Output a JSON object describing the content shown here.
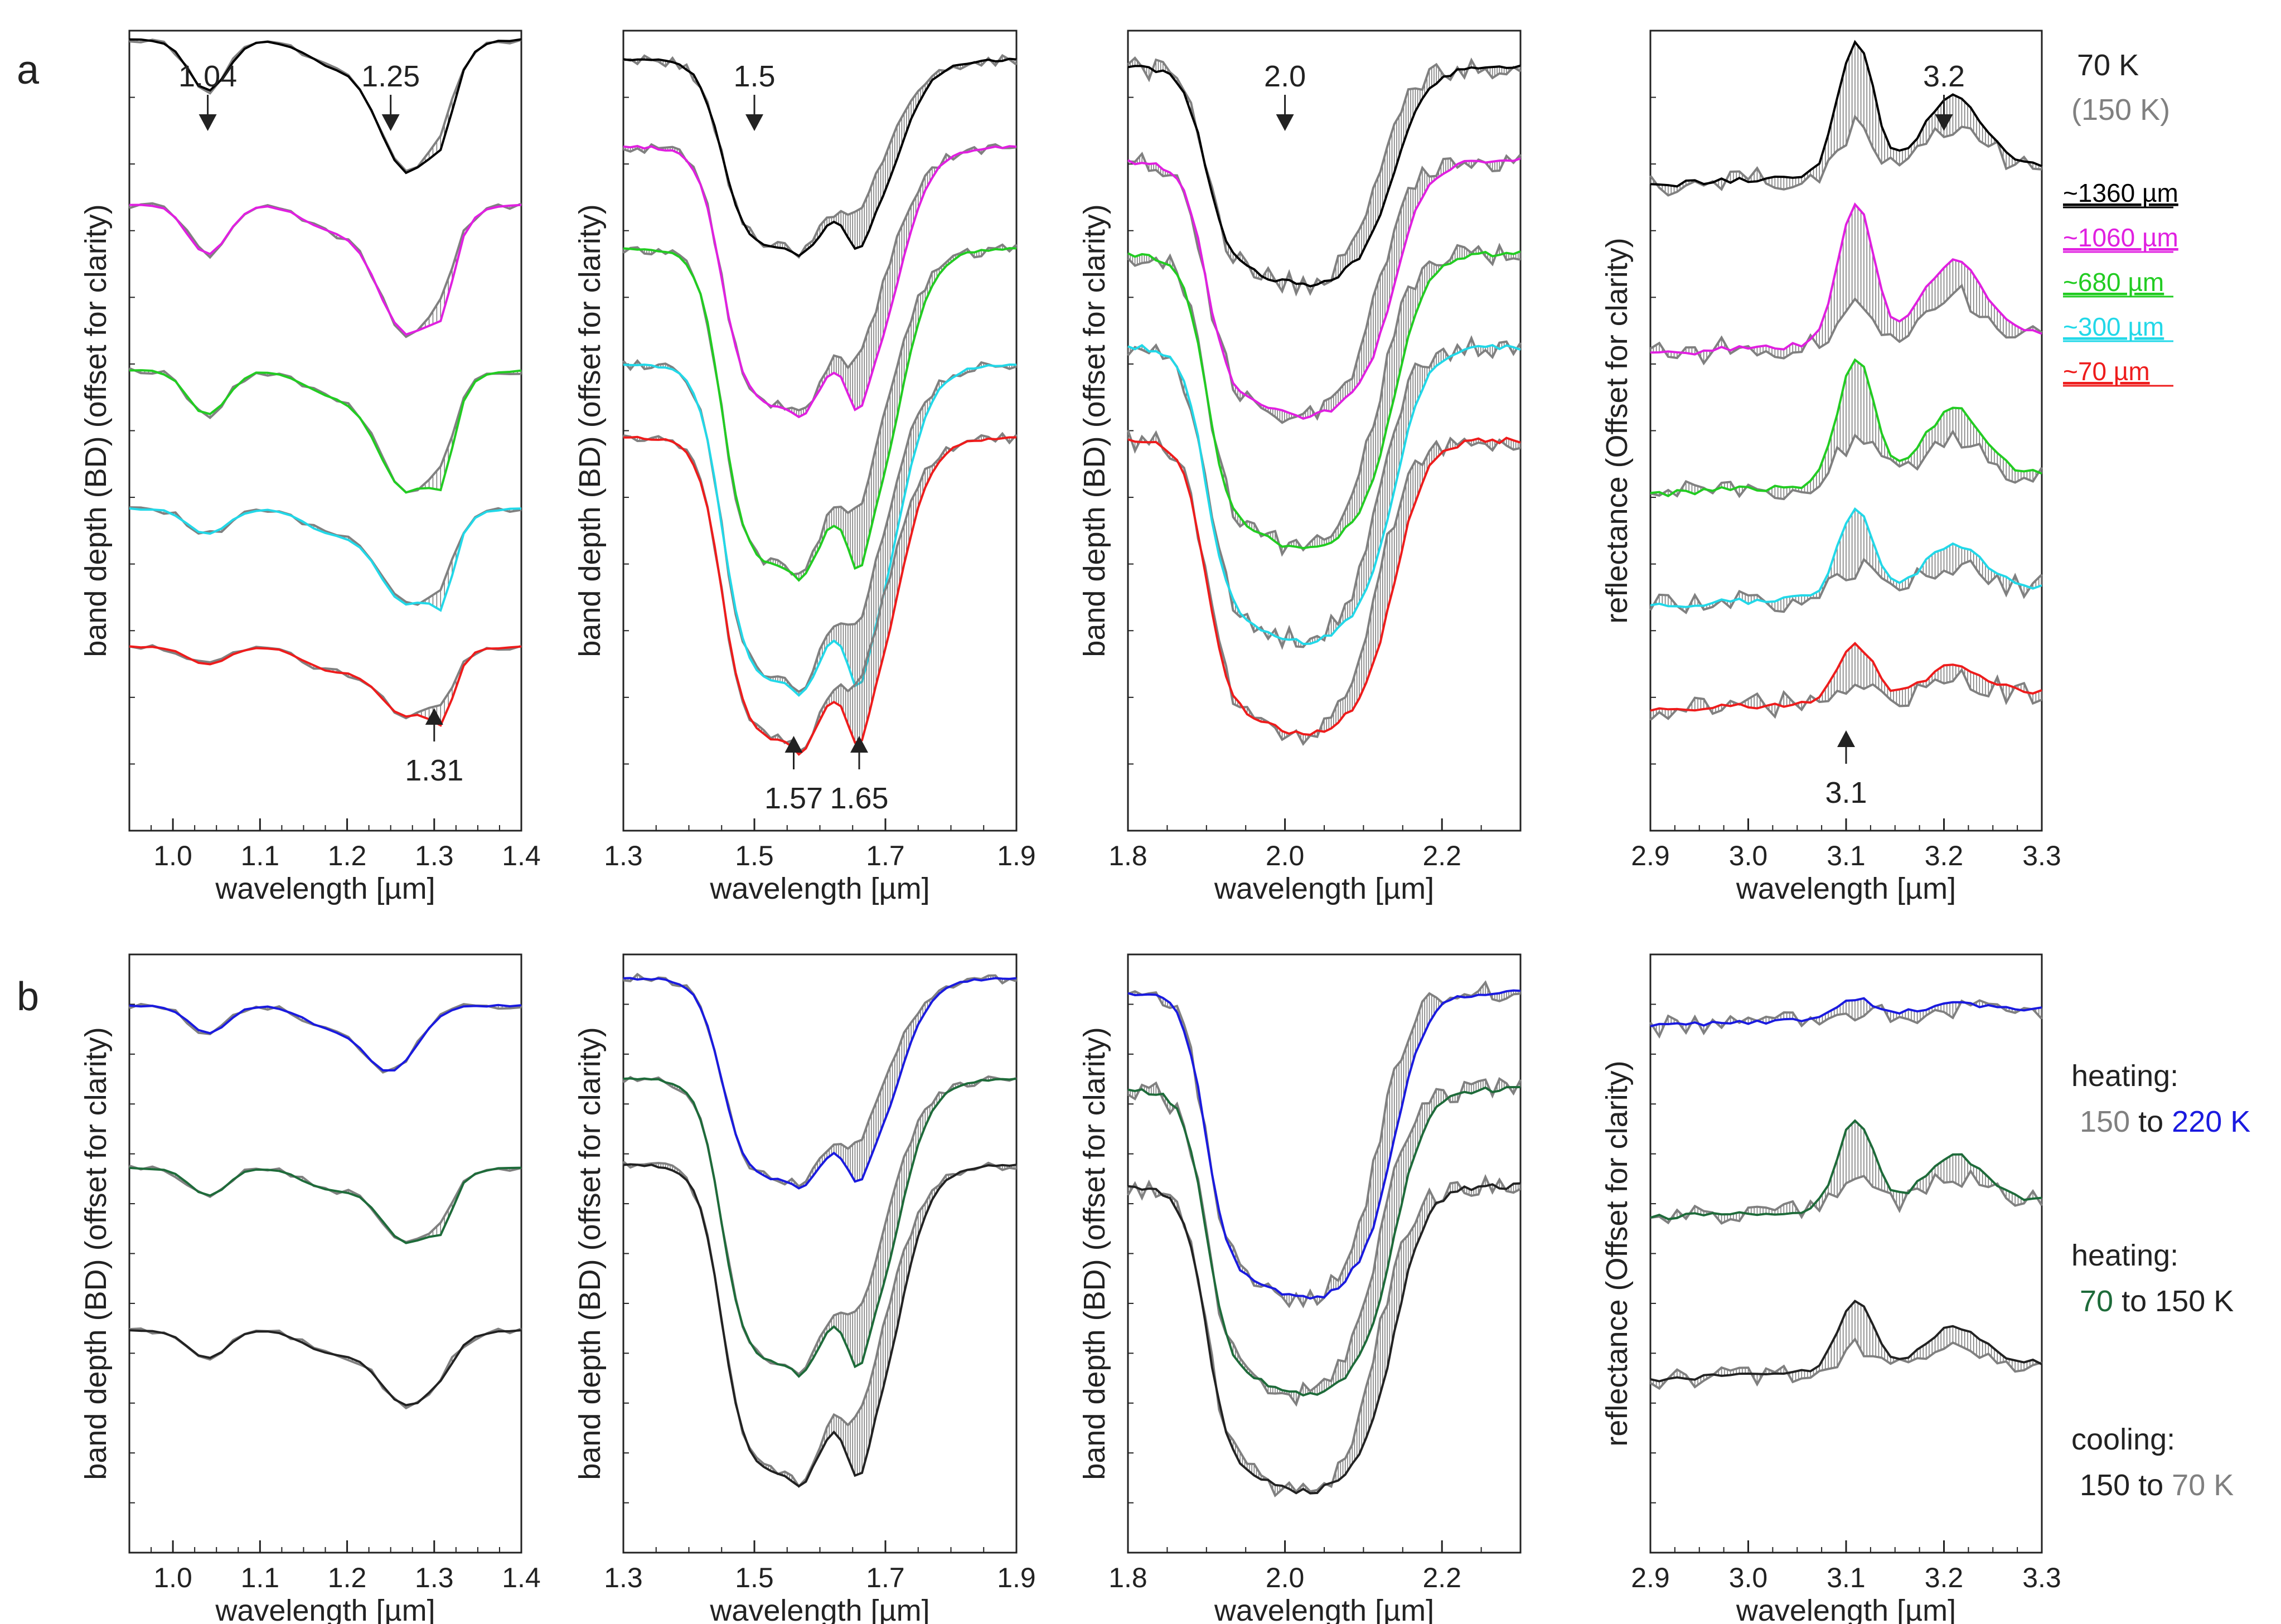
{
  "figure": {
    "row_labels": [
      "a",
      "b"
    ],
    "temp_title_70": "70 K",
    "temp_title_150": "(150 K)",
    "grain_sizes": [
      {
        "label": "~1360 µm",
        "color": "#000000"
      },
      {
        "label": "~1060 µm",
        "color": "#e020e0"
      },
      {
        "label": "~680 µm",
        "color": "#22cc22"
      },
      {
        "label": "~300 µm",
        "color": "#22d8e8"
      },
      {
        "label": "~70 µm",
        "color": "#ee1c1c"
      }
    ],
    "b_legend": [
      {
        "line1": "heating:",
        "from": "150",
        "to": "220 K",
        "from_color": "#808080",
        "to_color": "#1a1adf",
        "joiner": " to "
      },
      {
        "line1": "heating:",
        "from": "70",
        "to": "150 K",
        "from_color": "#1e6b3a",
        "to_color": "#222222",
        "joiner": " to "
      },
      {
        "line1": "cooling:",
        "from": "150",
        "to": "70 K",
        "from_color": "#222222",
        "to_color": "#808080",
        "joiner": " to "
      }
    ],
    "colors": {
      "gray": "#808080",
      "hatch": "#777777",
      "axis": "#222222"
    },
    "ylabel_bd": "band depth (BD) (offset for clarity)",
    "ylabel_refl": "reflectance  (Offset for clarity)",
    "xlabel": "wavelength [µm]"
  },
  "chart_data": [
    {
      "id": "a1",
      "type": "line",
      "xlim": [
        0.95,
        1.4
      ],
      "xticks": [
        1.0,
        1.1,
        1.2,
        1.3,
        1.4
      ],
      "tick_labels": [
        "1.0",
        "1.1",
        "1.2",
        "1.3",
        "1.4"
      ],
      "band": "1.04-1.31",
      "annotations": [
        {
          "text": "1.04",
          "x": 1.04,
          "dir": "down"
        },
        {
          "text": "1.25",
          "x": 1.25,
          "dir": "down"
        },
        {
          "text": "1.31",
          "x": 1.3,
          "dir": "up"
        }
      ],
      "series": [
        {
          "name": "~1360 µm",
          "color": "#000000",
          "offset": 0.0,
          "feat": [
            [
              1.04,
              0.28,
              0.022
            ],
            [
              1.27,
              0.72,
              0.035
            ],
            [
              1.31,
              0.2,
              0.012
            ]
          ]
        },
        {
          "name": "~1060 µm",
          "color": "#e020e0",
          "offset": 0.9,
          "feat": [
            [
              1.04,
              0.27,
              0.022
            ],
            [
              1.27,
              0.7,
              0.035
            ],
            [
              1.31,
              0.24,
              0.012
            ]
          ]
        },
        {
          "name": "~680 µm",
          "color": "#22cc22",
          "offset": 1.8,
          "feat": [
            [
              1.04,
              0.24,
              0.022
            ],
            [
              1.27,
              0.66,
              0.035
            ],
            [
              1.31,
              0.28,
              0.012
            ]
          ]
        },
        {
          "name": "~300 µm",
          "color": "#22d8e8",
          "offset": 2.55,
          "feat": [
            [
              1.04,
              0.14,
              0.022
            ],
            [
              1.27,
              0.52,
              0.035
            ],
            [
              1.31,
              0.26,
              0.012
            ]
          ]
        },
        {
          "name": "~70 µm",
          "color": "#ee1c1c",
          "offset": 3.3,
          "feat": [
            [
              1.04,
              0.1,
              0.022
            ],
            [
              1.27,
              0.38,
              0.035
            ],
            [
              1.31,
              0.22,
              0.012
            ]
          ]
        }
      ],
      "yrange": [
        -0.05,
        4.3
      ]
    },
    {
      "id": "a2",
      "type": "line",
      "xlim": [
        1.3,
        1.9
      ],
      "xticks": [
        1.3,
        1.5,
        1.7,
        1.9
      ],
      "tick_labels": [
        "1.3",
        "1.5",
        "1.7",
        "1.9"
      ],
      "band": "1.5-1.65",
      "annotations": [
        {
          "text": "1.5",
          "x": 1.5,
          "dir": "down"
        },
        {
          "text": "1.57",
          "x": 1.56,
          "dir": "up"
        },
        {
          "text": "1.65",
          "x": 1.66,
          "dir": "up"
        }
      ],
      "series": [
        {
          "name": "~1360 µm",
          "color": "#000000",
          "offset": 0.0,
          "depth": 0.65
        },
        {
          "name": "~1060 µm",
          "color": "#e020e0",
          "offset": 0.3,
          "depth": 0.9
        },
        {
          "name": "~680 µm",
          "color": "#22cc22",
          "offset": 0.65,
          "depth": 1.1
        },
        {
          "name": "~300 µm",
          "color": "#22d8e8",
          "offset": 1.05,
          "depth": 1.1
        },
        {
          "name": "~70 µm",
          "color": "#ee1c1c",
          "offset": 1.3,
          "depth": 1.05
        }
      ],
      "yrange": [
        -0.1,
        2.65
      ]
    },
    {
      "id": "a3",
      "type": "line",
      "xlim": [
        1.8,
        2.3
      ],
      "xticks": [
        1.8,
        2.0,
        2.2
      ],
      "tick_labels": [
        "1.8",
        "2.0",
        "2.2"
      ],
      "band": "2.0",
      "annotations": [
        {
          "text": "2.0",
          "x": 2.0,
          "dir": "down"
        }
      ],
      "series": [
        {
          "name": "~1360 µm",
          "color": "#000000",
          "offset": 0.0,
          "depth": 0.55
        },
        {
          "name": "~1060 µm",
          "color": "#e020e0",
          "offset": 0.25,
          "depth": 0.65
        },
        {
          "name": "~680 µm",
          "color": "#22cc22",
          "offset": 0.5,
          "depth": 0.75
        },
        {
          "name": "~300 µm",
          "color": "#22d8e8",
          "offset": 0.75,
          "depth": 0.75
        },
        {
          "name": "~70 µm",
          "color": "#ee1c1c",
          "offset": 1.0,
          "depth": 0.75
        }
      ],
      "yrange": [
        -0.1,
        2.05
      ]
    },
    {
      "id": "a4",
      "type": "line",
      "xlim": [
        2.9,
        3.3
      ],
      "xticks": [
        2.9,
        3.0,
        3.1,
        3.2,
        3.3
      ],
      "tick_labels": [
        "2.9",
        "3.0",
        "3.1",
        "3.2",
        "3.3"
      ],
      "band": "3.1-3.2",
      "annotations": [
        {
          "text": "3.2",
          "x": 3.2,
          "dir": "down"
        },
        {
          "text": "3.1",
          "x": 3.1,
          "dir": "up"
        }
      ],
      "series": [
        {
          "name": "~1360 µm",
          "color": "#000000",
          "offset": 0.0,
          "peak": 0.95
        },
        {
          "name": "~1060 µm",
          "color": "#e020e0",
          "offset": 1.2,
          "peak": 1.0
        },
        {
          "name": "~680 µm",
          "color": "#22cc22",
          "offset": 2.2,
          "peak": 0.9
        },
        {
          "name": "~300 µm",
          "color": "#22d8e8",
          "offset": 3.0,
          "peak": 0.6
        },
        {
          "name": "~70 µm",
          "color": "#ee1c1c",
          "offset": 3.75,
          "peak": 0.4
        }
      ],
      "yrange": [
        -1.1,
        4.6
      ]
    },
    {
      "id": "b1",
      "type": "line",
      "xlim": [
        0.95,
        1.4
      ],
      "xticks": [
        1.0,
        1.1,
        1.2,
        1.3,
        1.4
      ],
      "tick_labels": [
        "1.0",
        "1.1",
        "1.2",
        "1.3",
        "1.4"
      ],
      "series": [
        {
          "name": "150 to 220 K",
          "color": "#1a1adf",
          "offset": 0.0,
          "feat": [
            [
              1.04,
              0.16,
              0.022
            ],
            [
              1.25,
              0.38,
              0.03
            ],
            [
              1.31,
              0.0,
              0.012
            ]
          ]
        },
        {
          "name": "70 to 150 K",
          "color": "#1e6b3a",
          "offset": 0.95,
          "feat": [
            [
              1.04,
              0.16,
              0.022
            ],
            [
              1.27,
              0.44,
              0.033
            ],
            [
              1.31,
              0.16,
              0.012
            ]
          ]
        },
        {
          "name": "150 to 70 K",
          "color": "#222222",
          "offset": 1.9,
          "feat": [
            [
              1.04,
              0.16,
              0.022
            ],
            [
              1.27,
              0.44,
              0.035
            ],
            [
              1.31,
              0.05,
              0.012
            ]
          ]
        }
      ],
      "yrange": [
        -0.3,
        3.2
      ]
    },
    {
      "id": "b2",
      "type": "line",
      "xlim": [
        1.3,
        1.9
      ],
      "xticks": [
        1.3,
        1.5,
        1.7,
        1.9
      ],
      "tick_labels": [
        "1.3",
        "1.5",
        "1.7",
        "1.9"
      ],
      "series": [
        {
          "name": "150 to 220 K",
          "color": "#1a1adf",
          "offset": 0.0,
          "depth": 0.85
        },
        {
          "name": "70 to 150 K",
          "color": "#1e6b3a",
          "offset": 0.42,
          "depth": 1.2
        },
        {
          "name": "150 to 70 K",
          "color": "#222222",
          "offset": 0.78,
          "depth": 1.3
        }
      ],
      "yrange": [
        -0.1,
        2.4
      ]
    },
    {
      "id": "b3",
      "type": "line",
      "xlim": [
        1.8,
        2.3
      ],
      "xticks": [
        1.8,
        2.0,
        2.2
      ],
      "tick_labels": [
        "1.8",
        "2.0",
        "2.2"
      ],
      "series": [
        {
          "name": "150 to 220 K",
          "color": "#1a1adf",
          "offset": 0.0,
          "depth": 0.75
        },
        {
          "name": "70 to 150 K",
          "color": "#1e6b3a",
          "offset": 0.25,
          "depth": 0.75
        },
        {
          "name": "150 to 70 K",
          "color": "#222222",
          "offset": 0.5,
          "depth": 0.75
        }
      ],
      "yrange": [
        -0.1,
        1.45
      ]
    },
    {
      "id": "b4",
      "type": "line",
      "xlim": [
        2.9,
        3.3
      ],
      "xticks": [
        2.9,
        3.0,
        3.1,
        3.2,
        3.3
      ],
      "tick_labels": [
        "2.9",
        "3.0",
        "3.1",
        "3.2",
        "3.3"
      ],
      "series": [
        {
          "name": "150 to 220 K",
          "color": "#1a1adf",
          "offset": 0.0,
          "peak": 0.15
        },
        {
          "name": "70 to 150 K",
          "color": "#1e6b3a",
          "offset": 1.6,
          "peak": 0.75
        },
        {
          "name": "150 to 70 K",
          "color": "#222222",
          "offset": 2.95,
          "peak": 0.6
        }
      ],
      "yrange": [
        -0.6,
        4.4
      ]
    }
  ]
}
